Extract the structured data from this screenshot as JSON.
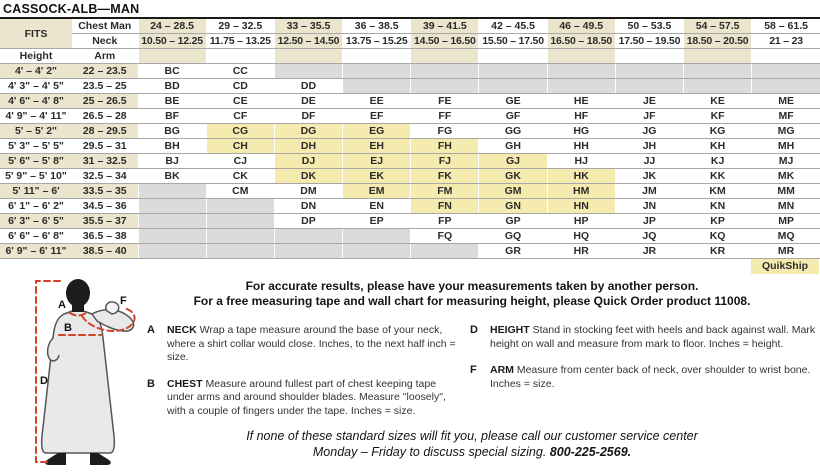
{
  "title": "CASSOCK-ALB—MAN",
  "colors": {
    "column_beige": "#ece5cd",
    "quickship_yellow": "#f5ebae",
    "unavailable_gray": "#dbdbdb",
    "grid_line": "#a8a8a8",
    "measure_line_red": "#d04327"
  },
  "table": {
    "fits_label": "FITS",
    "chest_label": "Chest Man",
    "neck_label": "Neck",
    "height_label": "Height",
    "arm_label": "Arm",
    "chest_ranges": [
      "24 – 28.5",
      "29 – 32.5",
      "33 – 35.5",
      "36 – 38.5",
      "39 – 41.5",
      "42 – 45.5",
      "46 – 49.5",
      "50 – 53.5",
      "54 – 57.5",
      "58 – 61.5"
    ],
    "neck_ranges": [
      "10.50 – 12.25",
      "11.75 – 13.25",
      "12.50 – 14.50",
      "13.75 – 15.25",
      "14.50 – 16.50",
      "15.50 – 17.50",
      "16.50 – 18.50",
      "17.50 – 19.50",
      "18.50 – 20.50",
      "21 – 23"
    ],
    "rows": [
      {
        "height": "4' – 4' 2\"",
        "arm": "22 – 23.5",
        "codes": [
          "BC",
          "CC",
          "",
          "",
          "",
          "",
          "",
          "",
          "",
          ""
        ]
      },
      {
        "height": "4' 3\" – 4' 5\"",
        "arm": "23.5 – 25",
        "codes": [
          "BD",
          "CD",
          "DD",
          "",
          "",
          "",
          "",
          "",
          "",
          ""
        ]
      },
      {
        "height": "4' 6\" – 4' 8\"",
        "arm": "25 – 26.5",
        "codes": [
          "BE",
          "CE",
          "DE",
          "EE",
          "FE",
          "GE",
          "HE",
          "JE",
          "KE",
          "ME"
        ]
      },
      {
        "height": "4' 9\" – 4' 11\"",
        "arm": "26.5 – 28",
        "codes": [
          "BF",
          "CF",
          "DF",
          "EF",
          "FF",
          "GF",
          "HF",
          "JF",
          "KF",
          "MF"
        ]
      },
      {
        "height": "5' – 5' 2\"",
        "arm": "28 – 29.5",
        "codes": [
          "BG",
          "CG",
          "DG",
          "EG",
          "FG",
          "GG",
          "HG",
          "JG",
          "KG",
          "MG"
        ]
      },
      {
        "height": "5' 3\" – 5' 5\"",
        "arm": "29.5 – 31",
        "codes": [
          "BH",
          "CH",
          "DH",
          "EH",
          "FH",
          "GH",
          "HH",
          "JH",
          "KH",
          "MH"
        ]
      },
      {
        "height": "5' 6\" – 5' 8\"",
        "arm": "31 – 32.5",
        "codes": [
          "BJ",
          "CJ",
          "DJ",
          "EJ",
          "FJ",
          "GJ",
          "HJ",
          "JJ",
          "KJ",
          "MJ"
        ]
      },
      {
        "height": "5' 9\" – 5' 10\"",
        "arm": "32.5 – 34",
        "codes": [
          "BK",
          "CK",
          "DK",
          "EK",
          "FK",
          "GK",
          "HK",
          "JK",
          "KK",
          "MK"
        ]
      },
      {
        "height": "5' 11\" – 6'",
        "arm": "33.5 – 35",
        "codes": [
          "",
          "CM",
          "DM",
          "EM",
          "FM",
          "GM",
          "HM",
          "JM",
          "KM",
          "MM"
        ]
      },
      {
        "height": "6' 1\" – 6' 2\"",
        "arm": "34.5 – 36",
        "codes": [
          "",
          "",
          "DN",
          "EN",
          "FN",
          "GN",
          "HN",
          "JN",
          "KN",
          "MN"
        ]
      },
      {
        "height": "6' 3\" – 6' 5\"",
        "arm": "35.5 – 37",
        "codes": [
          "",
          "",
          "DP",
          "EP",
          "FP",
          "GP",
          "HP",
          "JP",
          "KP",
          "MP"
        ]
      },
      {
        "height": "6' 6\" – 6' 8\"",
        "arm": "36.5 – 38",
        "codes": [
          "",
          "",
          "",
          "",
          "FQ",
          "GQ",
          "HQ",
          "JQ",
          "KQ",
          "MQ"
        ]
      },
      {
        "height": "6' 9\" – 6' 11\"",
        "arm": "38.5 – 40",
        "codes": [
          "",
          "",
          "",
          "",
          "",
          "GR",
          "HR",
          "JR",
          "KR",
          "MR"
        ]
      }
    ],
    "quickship_codes": [
      "CG",
      "DG",
      "EG",
      "CH",
      "DH",
      "EH",
      "FH",
      "DJ",
      "EJ",
      "FJ",
      "GJ",
      "DK",
      "EK",
      "FK",
      "GK",
      "HK",
      "EM",
      "FM",
      "GM",
      "HM",
      "FN",
      "GN",
      "HN"
    ],
    "quikship_label": "QuikShip"
  },
  "intro": {
    "line1": "For accurate results, please have your measurements taken by another person.",
    "line2": "For a free measuring tape and wall chart for measuring height, please Quick Order product 11008."
  },
  "instructions": {
    "left": [
      {
        "letter": "A",
        "term": "NECK",
        "text": "Wrap a tape measure around the base of your neck, where a shirt collar would close. Inches, to the next half inch = size."
      },
      {
        "letter": "B",
        "term": "CHEST",
        "text": "Measure around fullest part of chest keeping tape under arms and around shoulder blades. Measure \"loosely\", with a couple of fingers under the tape. Inches = size."
      }
    ],
    "right": [
      {
        "letter": "D",
        "term": "HEIGHT",
        "text": "Stand in stocking feet with heels and back against wall. Mark height on wall and measure from mark to floor. Inches = height."
      },
      {
        "letter": "F",
        "term": "ARM",
        "text": "Measure from center back of neck, over shoulder to wrist bone. Inches = size."
      }
    ]
  },
  "note": {
    "line1": "If none of these standard sizes will fit you, please call our customer service center",
    "line2_prefix": "Monday – Friday to discuss special sizing. ",
    "phone": "800-225-2569."
  },
  "figure": {
    "labels": {
      "neck": "A",
      "chest": "B",
      "height": "D",
      "arm": "F"
    }
  }
}
